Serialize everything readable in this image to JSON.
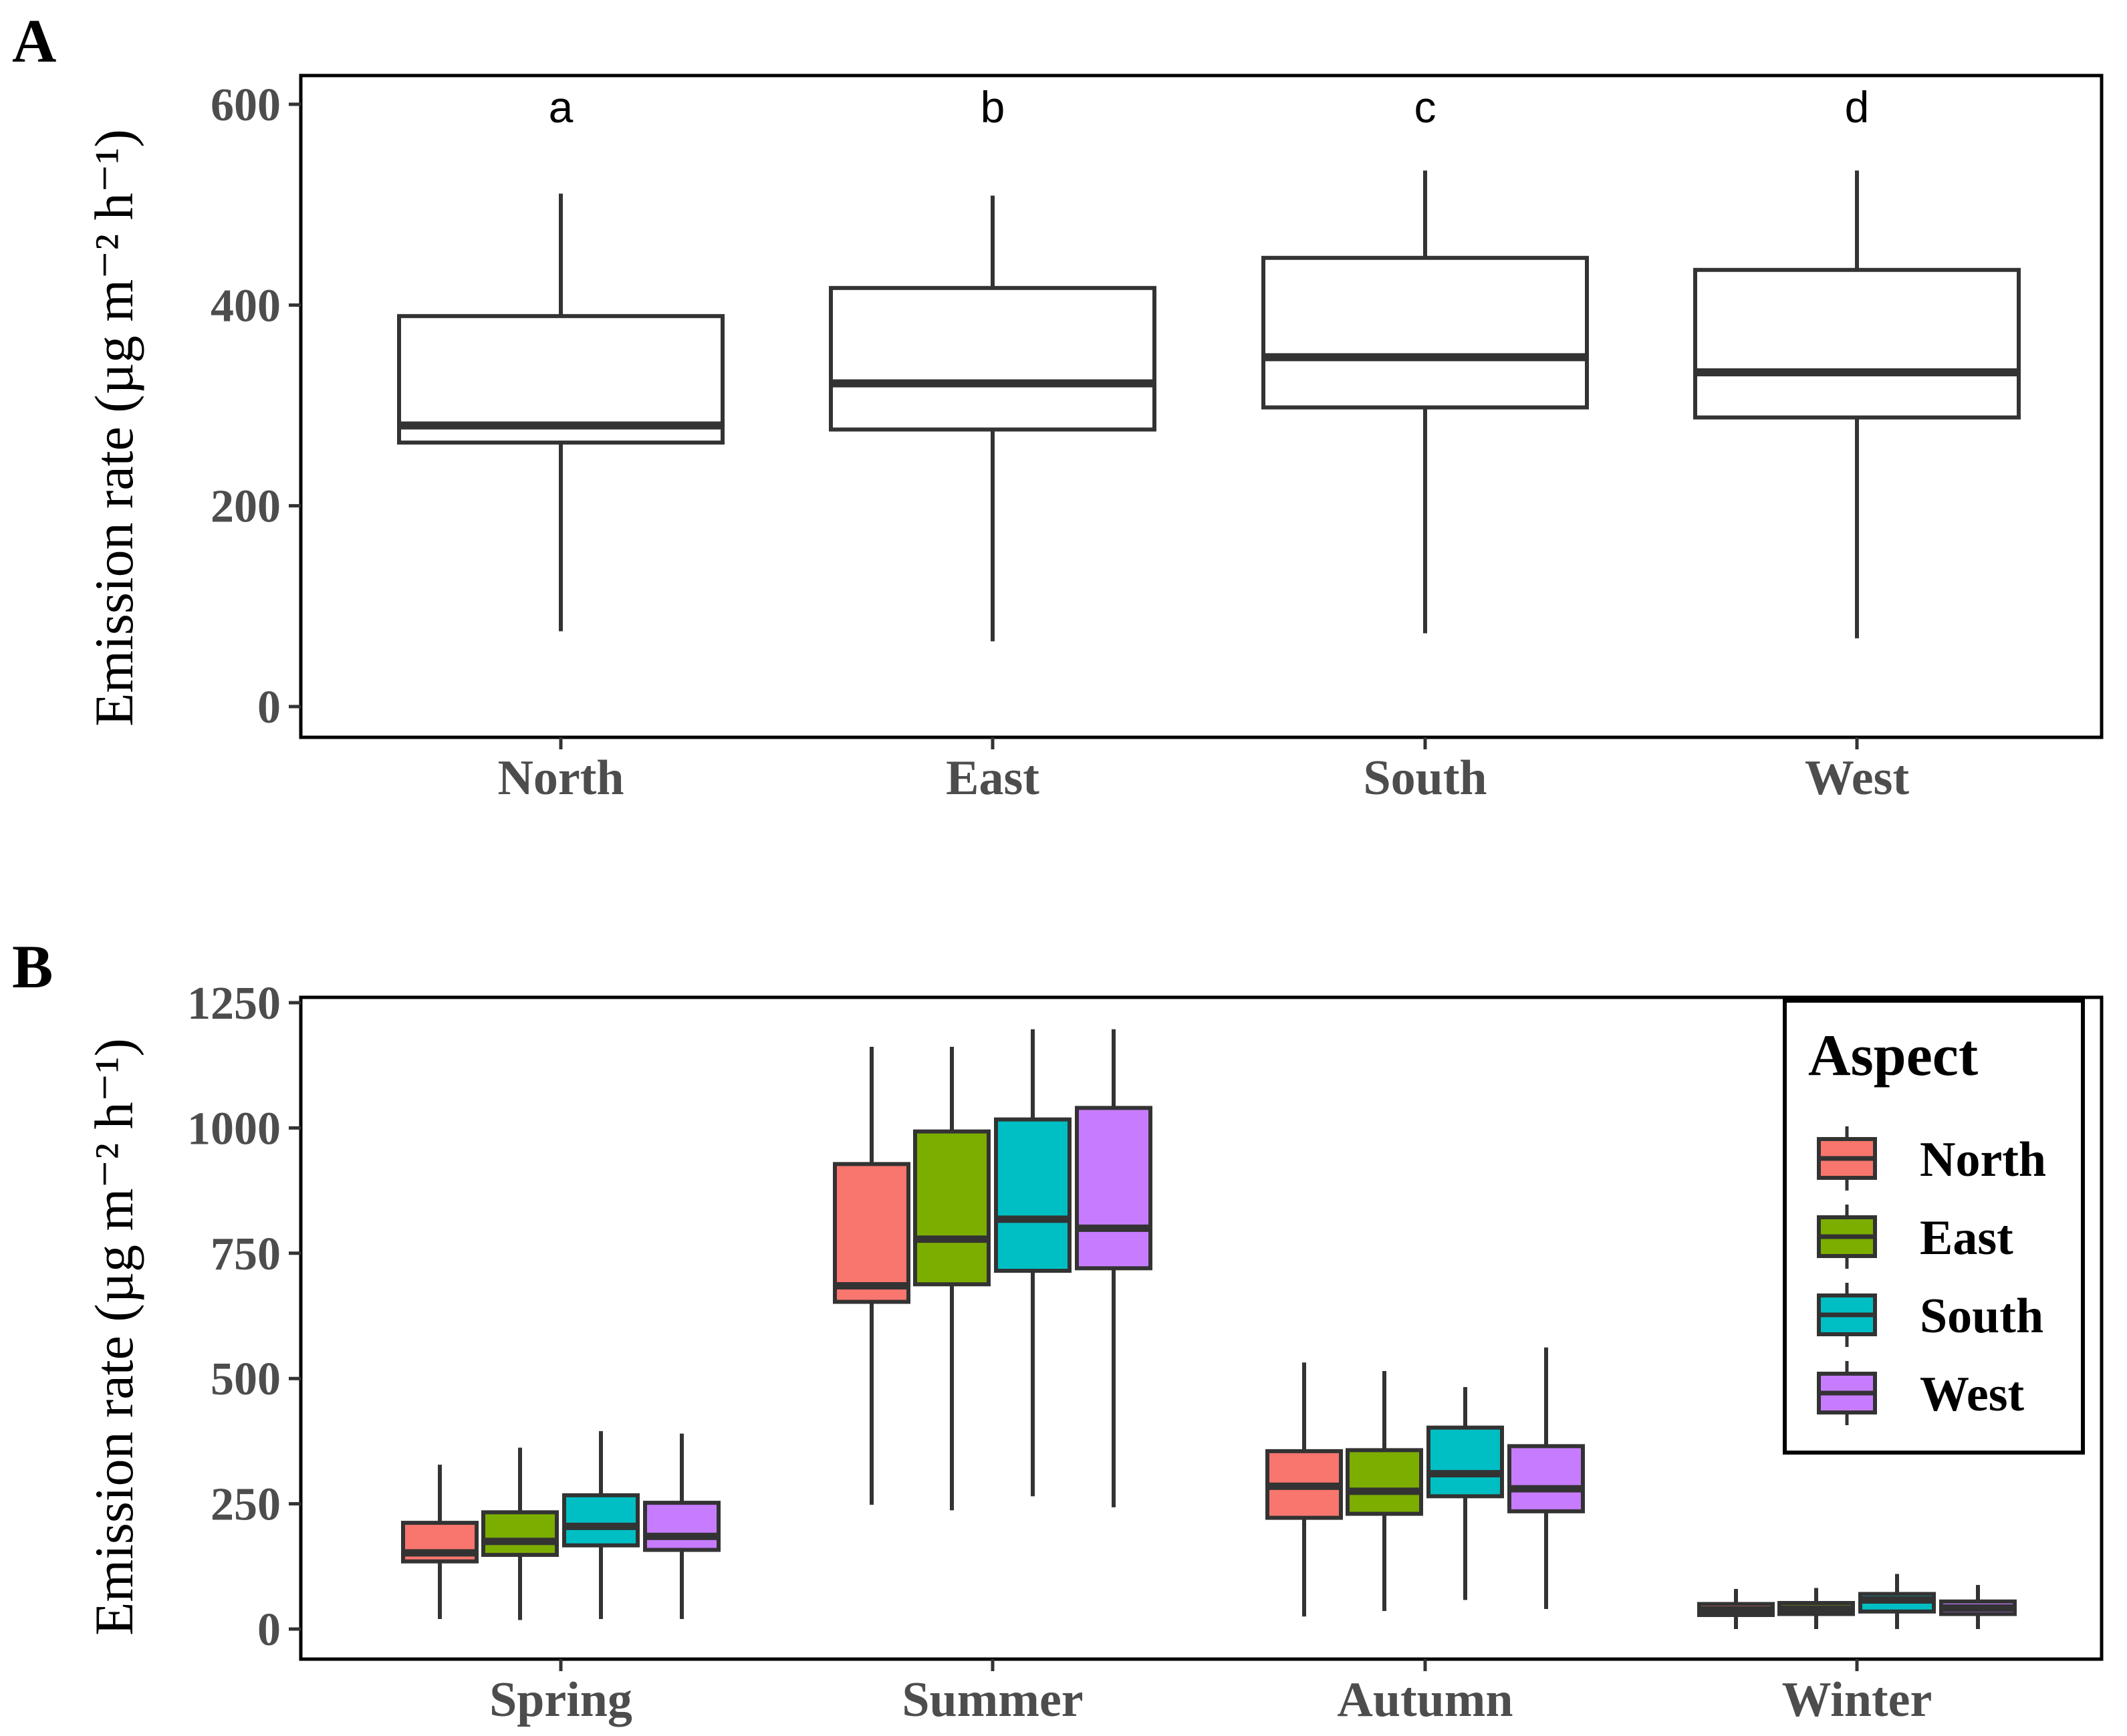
{
  "chart_data": [
    {
      "panel_label": "A",
      "type": "boxplot",
      "ylabel": "Emission rate (µg m⁻² h⁻¹)",
      "ylim": [
        0,
        600
      ],
      "yticks": [
        0,
        200,
        400,
        600
      ],
      "categories": [
        "North",
        "East",
        "South",
        "West"
      ],
      "letters": [
        "a",
        "b",
        "c",
        "d"
      ],
      "boxes": [
        {
          "name": "North",
          "min": 75,
          "q1": 263,
          "median": 280,
          "q3": 389,
          "max": 511
        },
        {
          "name": "East",
          "min": 65,
          "q1": 276,
          "median": 322,
          "q3": 417,
          "max": 509
        },
        {
          "name": "South",
          "min": 73,
          "q1": 298,
          "median": 348,
          "q3": 447,
          "max": 534
        },
        {
          "name": "West",
          "min": 68,
          "q1": 288,
          "median": 333,
          "q3": 435,
          "max": 534
        }
      ],
      "box_fill": "#ffffff",
      "line_color": "#333333"
    },
    {
      "panel_label": "B",
      "type": "boxplot",
      "ylabel": "Emission rate (µg m⁻² h⁻¹)",
      "ylim": [
        0,
        1250
      ],
      "yticks": [
        0,
        250,
        500,
        750,
        1000,
        1250
      ],
      "categories": [
        "Spring",
        "Summer",
        "Autumn",
        "Winter"
      ],
      "legend": {
        "title": "Aspect",
        "position": "top-right"
      },
      "series": [
        {
          "name": "North",
          "color": "#F8766D",
          "boxes": [
            {
              "min": 20,
              "q1": 135,
              "median": 152,
              "q3": 212,
              "max": 328
            },
            {
              "min": 248,
              "q1": 653,
              "median": 685,
              "q3": 928,
              "max": 1162
            },
            {
              "min": 25,
              "q1": 222,
              "median": 285,
              "q3": 355,
              "max": 532
            },
            {
              "min": 0,
              "q1": 28,
              "median": 38,
              "q3": 50,
              "max": 80
            }
          ]
        },
        {
          "name": "East",
          "color": "#7CAE00",
          "boxes": [
            {
              "min": 18,
              "q1": 148,
              "median": 175,
              "q3": 233,
              "max": 362
            },
            {
              "min": 237,
              "q1": 688,
              "median": 778,
              "q3": 993,
              "max": 1162
            },
            {
              "min": 36,
              "q1": 230,
              "median": 275,
              "q3": 357,
              "max": 515
            },
            {
              "min": 0,
              "q1": 30,
              "median": 40,
              "q3": 52,
              "max": 82
            }
          ]
        },
        {
          "name": "South",
          "color": "#00BFC4",
          "boxes": [
            {
              "min": 20,
              "q1": 167,
              "median": 205,
              "q3": 267,
              "max": 395
            },
            {
              "min": 265,
              "q1": 715,
              "median": 818,
              "q3": 1017,
              "max": 1197
            },
            {
              "min": 58,
              "q1": 265,
              "median": 310,
              "q3": 402,
              "max": 483
            },
            {
              "min": 0,
              "q1": 35,
              "median": 58,
              "q3": 70,
              "max": 110
            }
          ]
        },
        {
          "name": "West",
          "color": "#C77CFF",
          "boxes": [
            {
              "min": 20,
              "q1": 158,
              "median": 185,
              "q3": 252,
              "max": 390
            },
            {
              "min": 243,
              "q1": 720,
              "median": 800,
              "q3": 1040,
              "max": 1197
            },
            {
              "min": 40,
              "q1": 235,
              "median": 280,
              "q3": 365,
              "max": 562
            },
            {
              "min": 0,
              "q1": 30,
              "median": 42,
              "q3": 55,
              "max": 88
            }
          ]
        }
      ]
    }
  ]
}
